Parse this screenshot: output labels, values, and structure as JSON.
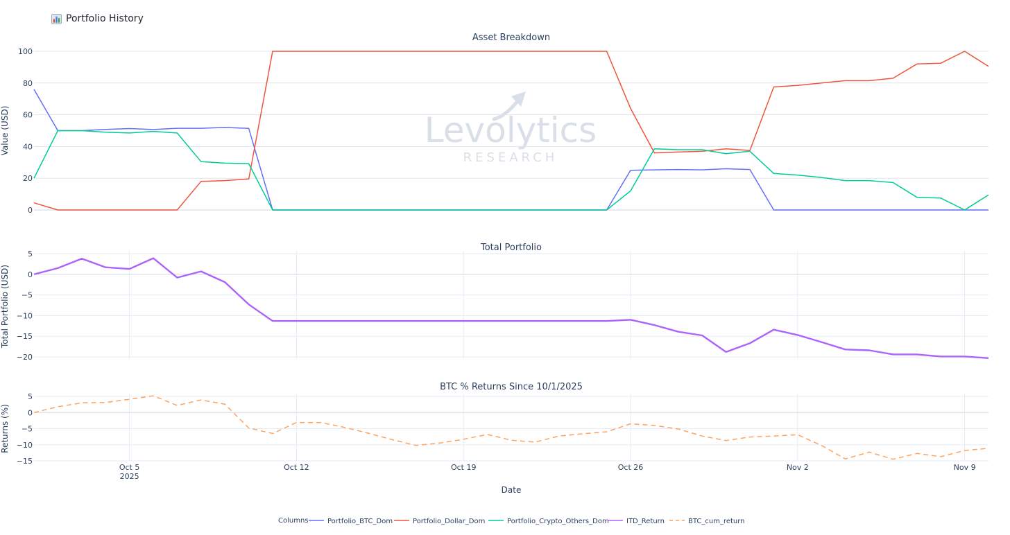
{
  "header": {
    "icon": "bar-chart-icon",
    "title": "Portfolio History"
  },
  "colors": {
    "btc_dom": "#636efa",
    "dollar_dom": "#EF553B",
    "crypto_others": "#00cc96",
    "itd_return": "#ab63fa",
    "btc_cum": "#FFA15A",
    "grid": "#e5ecf6",
    "text": "#2a3f5f"
  },
  "watermark": {
    "line1": "Levolytics",
    "line2": "RESEARCH"
  },
  "chart_data": [
    {
      "type": "line",
      "title": "Asset Breakdown",
      "ylabel": "Value (USD)",
      "ylim": [
        0,
        100
      ],
      "yticks": [
        0,
        20,
        40,
        60,
        80,
        100
      ],
      "grid": "horizontal",
      "x_dates": [
        "Oct 1",
        "Oct 2",
        "Oct 3",
        "Oct 4",
        "Oct 5",
        "Oct 6",
        "Oct 7",
        "Oct 8",
        "Oct 9",
        "Oct 10",
        "Oct 11",
        "Oct 24",
        "Oct 25",
        "Oct 26",
        "Oct 27",
        "Oct 28",
        "Oct 29",
        "Oct 30",
        "Oct 31",
        "Nov 1",
        "Nov 2",
        "Nov 3",
        "Nov 4",
        "Nov 5",
        "Nov 6",
        "Nov 7",
        "Nov 8",
        "Nov 9",
        "Nov 10"
      ],
      "series": [
        {
          "name": "Portfolio_BTC_Dom",
          "color_key": "btc_dom",
          "values": [
            76,
            50,
            50,
            50.8,
            51.3,
            50.7,
            51.5,
            51.5,
            52,
            51.4,
            0,
            0,
            0,
            25,
            25.3,
            25.5,
            25.3,
            26,
            25.5,
            0,
            0,
            0,
            0,
            0,
            0,
            0,
            0,
            0,
            0
          ]
        },
        {
          "name": "Portfolio_Dollar_Dom",
          "color_key": "dollar_dom",
          "values": [
            4.5,
            0,
            0,
            0,
            0,
            0,
            0,
            18,
            18.5,
            19.5,
            100,
            100,
            100,
            64,
            36,
            36.5,
            37,
            38.5,
            37.5,
            77.5,
            78.5,
            80,
            81.5,
            81.5,
            83,
            92,
            92.5,
            100,
            90.5
          ]
        },
        {
          "name": "Portfolio_Crypto_Others_Dom",
          "color_key": "crypto_others",
          "values": [
            20,
            50,
            50,
            49,
            48.5,
            49.5,
            48.5,
            30.5,
            29.5,
            29.2,
            0,
            0,
            0,
            12,
            38.5,
            38,
            38,
            35.5,
            37,
            23,
            22,
            20.5,
            18.5,
            18.5,
            17.3,
            8,
            7.5,
            0,
            9.5
          ]
        }
      ]
    },
    {
      "type": "line",
      "title": "Total Portfolio",
      "ylabel": "Total Portfolio (USD)",
      "ylim": [
        -20.5,
        5
      ],
      "yticks": [
        5,
        0,
        -5,
        -10,
        -15,
        -20
      ],
      "ytick_labels": [
        "5",
        "0",
        "−5",
        "−10",
        "−15",
        "−20"
      ],
      "grid": "both",
      "x_dates": [
        "Oct 1",
        "Oct 2",
        "Oct 3",
        "Oct 4",
        "Oct 5",
        "Oct 6",
        "Oct 7",
        "Oct 8",
        "Oct 9",
        "Oct 10",
        "Oct 11",
        "Oct 24",
        "Oct 25",
        "Oct 26",
        "Oct 27",
        "Oct 28",
        "Oct 29",
        "Oct 30",
        "Oct 31",
        "Nov 1",
        "Nov 2",
        "Nov 3",
        "Nov 4",
        "Nov 5",
        "Nov 6",
        "Nov 7",
        "Nov 8",
        "Nov 9",
        "Nov 10"
      ],
      "series": [
        {
          "name": "ITD_Return",
          "color_key": "itd_return",
          "values": [
            0,
            1.5,
            3.8,
            1.7,
            1.3,
            3.9,
            -0.8,
            0.7,
            -1.9,
            -7.3,
            -11.3,
            -11.3,
            -11.3,
            -11,
            -12.3,
            -13.9,
            -14.8,
            -18.8,
            -16.7,
            -13.4,
            -14.7,
            -16.4,
            -18.2,
            -18.4,
            -19.4,
            -19.4,
            -19.9,
            -19.9,
            -20.3
          ]
        }
      ]
    },
    {
      "type": "line",
      "title": "BTC % Returns Since 10/1/2025",
      "ylabel": "Returns (%)",
      "xlabel": "Date",
      "ylim": [
        -15,
        5
      ],
      "yticks": [
        5,
        0,
        -5,
        -10,
        -15
      ],
      "ytick_labels": [
        "5",
        "0",
        "−5",
        "−10",
        "−15"
      ],
      "grid": "both",
      "x_dates": [
        "Oct 1",
        "Oct 2",
        "Oct 3",
        "Oct 4",
        "Oct 5",
        "Oct 6",
        "Oct 7",
        "Oct 8",
        "Oct 9",
        "Oct 10",
        "Oct 11",
        "Oct 12",
        "Oct 13",
        "Oct 14",
        "Oct 15",
        "Oct 16",
        "Oct 17",
        "Oct 18",
        "Oct 19",
        "Oct 20",
        "Oct 21",
        "Oct 22",
        "Oct 23",
        "Oct 24",
        "Oct 25",
        "Oct 26",
        "Oct 27",
        "Oct 28",
        "Oct 29",
        "Oct 30",
        "Oct 31",
        "Nov 1",
        "Nov 2",
        "Nov 3",
        "Nov 4",
        "Nov 5",
        "Nov 6",
        "Nov 7",
        "Nov 8",
        "Nov 9",
        "Nov 10"
      ],
      "series": [
        {
          "name": "BTC_cum_return",
          "color_key": "btc_cum",
          "dash": "dash",
          "values": [
            0,
            1.8,
            3,
            3.1,
            4.1,
            5.2,
            2.2,
            3.9,
            2.6,
            -4.8,
            -6.5,
            -3.1,
            -3.1,
            -4.6,
            -6.4,
            -8.4,
            -10.2,
            -9.5,
            -8.3,
            -6.8,
            -8.6,
            -9.2,
            -7.3,
            -6.6,
            -6,
            -3.5,
            -4,
            -5.1,
            -7.3,
            -8.7,
            -7.6,
            -7.3,
            -6.9,
            -10.2,
            -14.4,
            -12.3,
            -14.5,
            -12.7,
            -13.7,
            -11.8,
            -11.1
          ]
        }
      ]
    }
  ],
  "x_axis": {
    "xlabel": "Date",
    "ticks": [
      {
        "date": "Oct 5",
        "label": "Oct 5",
        "sublabel": "2025"
      },
      {
        "date": "Oct 12",
        "label": "Oct 12",
        "sublabel": ""
      },
      {
        "date": "Oct 19",
        "label": "Oct 19",
        "sublabel": ""
      },
      {
        "date": "Oct 26",
        "label": "Oct 26",
        "sublabel": ""
      },
      {
        "date": "Nov 2",
        "label": "Nov 2",
        "sublabel": ""
      },
      {
        "date": "Nov 9",
        "label": "Nov 9",
        "sublabel": ""
      }
    ]
  },
  "legend": {
    "title": "Columns",
    "placement": "bottom-center",
    "items": [
      {
        "label": "Portfolio_BTC_Dom",
        "color_key": "btc_dom",
        "dash": "solid"
      },
      {
        "label": "Portfolio_Dollar_Dom",
        "color_key": "dollar_dom",
        "dash": "solid"
      },
      {
        "label": "Portfolio_Crypto_Others_Dom",
        "color_key": "crypto_others",
        "dash": "solid"
      },
      {
        "label": "ITD_Return",
        "color_key": "itd_return",
        "dash": "solid"
      },
      {
        "label": "BTC_cum_return",
        "color_key": "btc_cum",
        "dash": "dash"
      }
    ]
  }
}
